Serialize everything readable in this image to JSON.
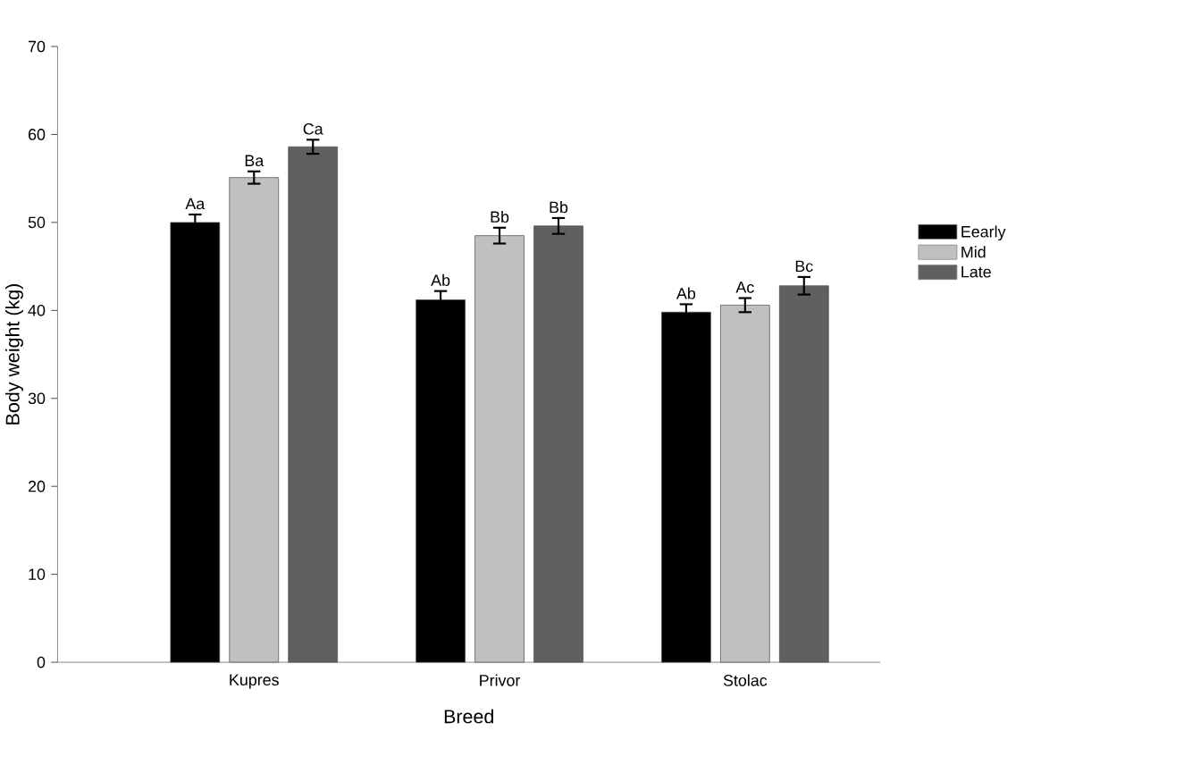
{
  "chart_data": {
    "type": "bar",
    "xlabel": "Breed",
    "ylabel": "Body weight (kg)",
    "categories": [
      "Kupres",
      "Privor",
      "Stolac"
    ],
    "series": [
      {
        "name": "Eearly",
        "color": "#000000",
        "values": [
          50.0,
          41.2,
          39.8
        ],
        "errors": [
          0.9,
          1.0,
          0.9
        ]
      },
      {
        "name": "Mid",
        "color": "#c0c0c0",
        "values": [
          55.1,
          48.5,
          40.6
        ],
        "errors": [
          0.7,
          0.9,
          0.8
        ]
      },
      {
        "name": "Late",
        "color": "#606060",
        "values": [
          58.6,
          49.6,
          42.8
        ],
        "errors": [
          0.8,
          0.9,
          1.0
        ]
      }
    ],
    "ylim": [
      0,
      70
    ],
    "yticks": [
      0,
      10,
      20,
      30,
      40,
      50,
      60,
      70
    ],
    "legend": "right",
    "annotations": [
      "Aa",
      "Ba",
      "Ca",
      "Ab",
      "Bb",
      "Bb",
      "Ab",
      "Ac",
      "Bc"
    ]
  }
}
